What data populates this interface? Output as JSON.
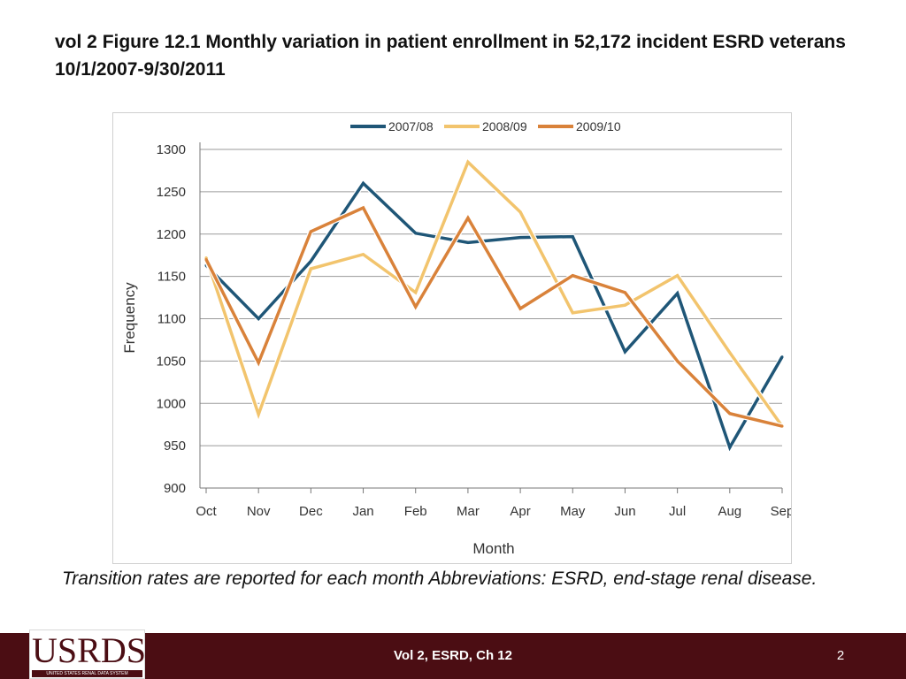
{
  "slide": {
    "title": "vol 2 Figure 12.1  Monthly variation in patient enrollment in 52,172 incident ESRD veterans 10/1/2007-9/30/2011",
    "caption": "Transition rates are reported for each month Abbreviations: ESRD, end-stage renal disease.",
    "footer_text": "Vol 2, ESRD, Ch 12",
    "page_number": "2",
    "logo_text": "USRDS",
    "logo_subtext": "UNITED STATES RENAL DATA SYSTEM"
  },
  "chart_data": {
    "type": "line",
    "xlabel": "Month",
    "ylabel": "Frequency",
    "categories": [
      "Oct",
      "Nov",
      "Dec",
      "Jan",
      "Feb",
      "Mar",
      "Apr",
      "May",
      "Jun",
      "Jul",
      "Aug",
      "Sep"
    ],
    "ylim": [
      900,
      1300
    ],
    "yticks": [
      900,
      950,
      1000,
      1050,
      1100,
      1150,
      1200,
      1250,
      1300
    ],
    "grid": true,
    "legend_position": "top",
    "series": [
      {
        "name": "2007/08",
        "color": "#1f5677",
        "values": [
          1163,
          1100,
          1168,
          1260,
          1201,
          1190,
          1196,
          1197,
          1061,
          1130,
          948,
          1055
        ]
      },
      {
        "name": "2008/09",
        "color": "#f2c46d",
        "values": [
          1172,
          987,
          1159,
          1176,
          1131,
          1285,
          1226,
          1107,
          1116,
          1151,
          1060,
          973
        ]
      },
      {
        "name": "2009/10",
        "color": "#d9823a",
        "values": [
          1170,
          1048,
          1203,
          1231,
          1114,
          1219,
          1112,
          1151,
          1131,
          1050,
          988,
          973
        ]
      }
    ]
  }
}
